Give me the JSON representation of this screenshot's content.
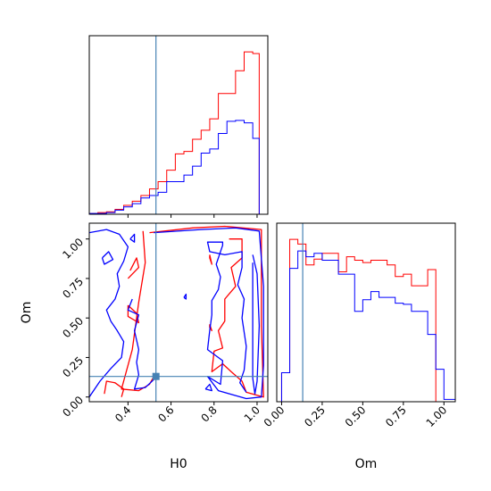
{
  "chart_data": {
    "type": "corner",
    "parameters": [
      "H0",
      "Om"
    ],
    "truth": {
      "H0": 0.53,
      "Om": 0.13
    },
    "colors": {
      "red": "#ff0000",
      "blue": "#0000ff",
      "truth": "#4682b4",
      "axes": "#000000"
    },
    "panels": {
      "h0_hist": {
        "type": "histogram",
        "xlim": [
          0.22,
          1.05
        ],
        "bin_edges": [
          0.22,
          0.26,
          0.3,
          0.34,
          0.38,
          0.42,
          0.46,
          0.5,
          0.54,
          0.58,
          0.62,
          0.66,
          0.7,
          0.74,
          0.78,
          0.82,
          0.86,
          0.9,
          0.94,
          0.98,
          1.01,
          1.05
        ],
        "series": [
          {
            "color": "red",
            "counts": [
              1,
              2,
              3,
              6,
              11,
              16,
              23,
              31,
              40,
              54,
              74,
              77,
              92,
              103,
              117,
              148,
              148,
              176,
              199,
              197,
              0
            ]
          },
          {
            "color": "blue",
            "counts": [
              1,
              1,
              2,
              5,
              9,
              13,
              20,
              23,
              27,
              40,
              40,
              48,
              59,
              75,
              80,
              99,
              114,
              115,
              112,
              93,
              0
            ]
          }
        ]
      },
      "om_hist": {
        "type": "histogram",
        "xlim": [
          -0.03,
          1.07
        ],
        "xticks": [
          0.0,
          0.25,
          0.5,
          0.75,
          1.0
        ],
        "xticklabels": [
          "0.00",
          "0.25",
          "0.50",
          "0.75",
          "1.00"
        ],
        "xlabel": "Om",
        "bin_edges": [
          -0.03,
          0.0,
          0.05,
          0.1,
          0.15,
          0.2,
          0.25,
          0.3,
          0.35,
          0.4,
          0.45,
          0.5,
          0.55,
          0.6,
          0.65,
          0.7,
          0.75,
          0.8,
          0.85,
          0.9,
          0.95,
          1.0,
          1.04,
          1.07
        ],
        "series": [
          {
            "color": "red",
            "counts": [
              0,
              25,
              140,
              136,
              118,
              123,
              128,
              128,
              112,
              125,
              122,
              120,
              122,
              122,
              118,
              108,
              110,
              100,
              100,
              114,
              0,
              0,
              0
            ]
          },
          {
            "color": "blue",
            "counts": [
              0,
              25,
              115,
              130,
              125,
              128,
              122,
              122,
              110,
              110,
              78,
              88,
              95,
              90,
              90,
              85,
              84,
              78,
              78,
              58,
              28,
              2,
              2
            ]
          }
        ]
      },
      "joint": {
        "type": "contour",
        "xlim": [
          0.22,
          1.05
        ],
        "ylim": [
          -0.03,
          1.1
        ],
        "xticks": [
          0.4,
          0.6,
          0.8,
          1.0
        ],
        "xticklabels": [
          "0.4",
          "0.6",
          "0.8",
          "1.0"
        ],
        "yticks": [
          0.0,
          0.25,
          0.5,
          0.75,
          1.0
        ],
        "yticklabels": [
          "0.00",
          "0.25",
          "0.50",
          "0.75",
          "1.00"
        ],
        "xlabel": "H0",
        "ylabel": "Om",
        "contours": [
          {
            "color": "red",
            "points": [
              [
                0.5,
                1.04
              ],
              [
                0.7,
                1.07
              ],
              [
                0.85,
                1.08
              ],
              [
                1.02,
                1.06
              ],
              [
                1.02,
                0.45
              ],
              [
                1.03,
                0.0
              ],
              [
                0.95,
                0.03
              ],
              [
                0.93,
                0.1
              ],
              [
                0.88,
                0.16
              ],
              [
                0.84,
                0.21
              ],
              [
                0.79,
                0.16
              ],
              [
                0.8,
                0.29
              ],
              [
                0.84,
                0.31
              ],
              [
                0.82,
                0.42
              ],
              [
                0.85,
                0.48
              ],
              [
                0.85,
                0.62
              ],
              [
                0.9,
                0.7
              ],
              [
                0.88,
                0.82
              ],
              [
                0.93,
                0.88
              ],
              [
                0.93,
                1.0
              ],
              [
                0.87,
                1.0
              ]
            ]
          },
          {
            "color": "red",
            "points": [
              [
                0.47,
                1.05
              ],
              [
                0.48,
                0.85
              ],
              [
                0.45,
                0.6
              ],
              [
                0.42,
                0.3
              ],
              [
                0.37,
                0.05
              ],
              [
                0.45,
                0.04
              ],
              [
                0.5,
                0.08
              ],
              [
                0.52,
                0.13
              ]
            ]
          },
          {
            "color": "red",
            "points": [
              [
                0.29,
                0.02
              ],
              [
                0.3,
                0.1
              ],
              [
                0.34,
                0.09
              ],
              [
                0.38,
                0.05
              ],
              [
                0.37,
                0.0
              ]
            ]
          },
          {
            "color": "red",
            "points": [
              [
                0.78,
                0.9
              ],
              [
                0.79,
                0.84
              ],
              [
                0.78,
                0.88
              ],
              [
                0.78,
                0.9
              ]
            ]
          },
          {
            "color": "red",
            "points": [
              [
                0.78,
                0.46
              ],
              [
                0.79,
                0.42
              ],
              [
                0.78,
                0.44
              ],
              [
                0.78,
                0.46
              ]
            ]
          },
          {
            "color": "red",
            "points": [
              [
                0.4,
                0.58
              ],
              [
                0.44,
                0.53
              ],
              [
                0.45,
                0.47
              ],
              [
                0.4,
                0.51
              ],
              [
                0.4,
                0.58
              ]
            ]
          },
          {
            "color": "red",
            "points": [
              [
                0.4,
                0.75
              ],
              [
                0.45,
                0.82
              ],
              [
                0.44,
                0.88
              ],
              [
                0.41,
                0.8
              ]
            ]
          },
          {
            "color": "blue",
            "points": [
              [
                0.52,
                1.04
              ],
              [
                0.74,
                1.06
              ],
              [
                0.9,
                1.07
              ],
              [
                1.01,
                1.05
              ],
              [
                1.03,
                0.7
              ],
              [
                1.03,
                0.2
              ],
              [
                1.02,
                0.0
              ],
              [
                0.95,
                -0.01
              ],
              [
                0.82,
                0.04
              ],
              [
                0.77,
                0.13
              ],
              [
                0.83,
                0.08
              ],
              [
                0.84,
                0.23
              ],
              [
                0.77,
                0.3
              ],
              [
                0.78,
                0.42
              ],
              [
                0.79,
                0.52
              ],
              [
                0.79,
                0.61
              ],
              [
                0.82,
                0.68
              ],
              [
                0.83,
                0.76
              ],
              [
                0.81,
                0.84
              ],
              [
                0.84,
                0.96
              ],
              [
                0.84,
                0.98
              ],
              [
                0.77,
                0.98
              ],
              [
                0.78,
                0.92
              ],
              [
                0.85,
                0.9
              ],
              [
                0.93,
                0.92
              ],
              [
                0.93,
                0.82
              ],
              [
                0.91,
                0.71
              ],
              [
                0.94,
                0.62
              ],
              [
                0.93,
                0.5
              ],
              [
                0.95,
                0.32
              ],
              [
                0.94,
                0.17
              ],
              [
                0.92,
                0.09
              ],
              [
                0.95,
                0.03
              ]
            ]
          },
          {
            "color": "blue",
            "points": [
              [
                0.98,
                0.9
              ],
              [
                1.0,
                0.78
              ],
              [
                1.01,
                0.45
              ],
              [
                1.0,
                0.1
              ],
              [
                0.99,
                0.02
              ],
              [
                0.98,
                0.12
              ],
              [
                0.98,
                0.5
              ],
              [
                0.98,
                0.85
              ]
            ]
          },
          {
            "color": "blue",
            "points": [
              [
                0.22,
                0.0
              ],
              [
                0.27,
                0.1
              ],
              [
                0.32,
                0.18
              ],
              [
                0.37,
                0.25
              ],
              [
                0.38,
                0.35
              ],
              [
                0.35,
                0.42
              ],
              [
                0.32,
                0.48
              ],
              [
                0.3,
                0.55
              ],
              [
                0.34,
                0.62
              ],
              [
                0.36,
                0.7
              ],
              [
                0.35,
                0.78
              ],
              [
                0.38,
                0.86
              ],
              [
                0.4,
                0.95
              ],
              [
                0.36,
                1.03
              ],
              [
                0.3,
                1.06
              ],
              [
                0.22,
                1.04
              ]
            ]
          },
          {
            "color": "blue",
            "points": [
              [
                0.42,
                0.62
              ],
              [
                0.4,
                0.55
              ],
              [
                0.45,
                0.52
              ],
              [
                0.43,
                0.42
              ],
              [
                0.45,
                0.3
              ],
              [
                0.44,
                0.22
              ],
              [
                0.45,
                0.14
              ],
              [
                0.43,
                0.05
              ],
              [
                0.48,
                0.06
              ],
              [
                0.52,
                0.11
              ]
            ]
          },
          {
            "color": "blue",
            "points": [
              [
                0.28,
                0.88
              ],
              [
                0.31,
                0.92
              ],
              [
                0.33,
                0.87
              ],
              [
                0.29,
                0.84
              ],
              [
                0.28,
                0.88
              ]
            ]
          },
          {
            "color": "blue",
            "points": [
              [
                0.41,
                1.0
              ],
              [
                0.43,
                1.03
              ],
              [
                0.43,
                0.98
              ],
              [
                0.41,
                1.0
              ]
            ]
          },
          {
            "color": "blue",
            "points": [
              [
                0.76,
                0.05
              ],
              [
                0.78,
                0.08
              ],
              [
                0.79,
                0.04
              ],
              [
                0.76,
                0.05
              ]
            ]
          },
          {
            "color": "blue",
            "points": [
              [
                0.66,
                0.63
              ],
              [
                0.67,
                0.65
              ],
              [
                0.67,
                0.62
              ],
              [
                0.66,
                0.63
              ]
            ]
          }
        ]
      }
    }
  }
}
